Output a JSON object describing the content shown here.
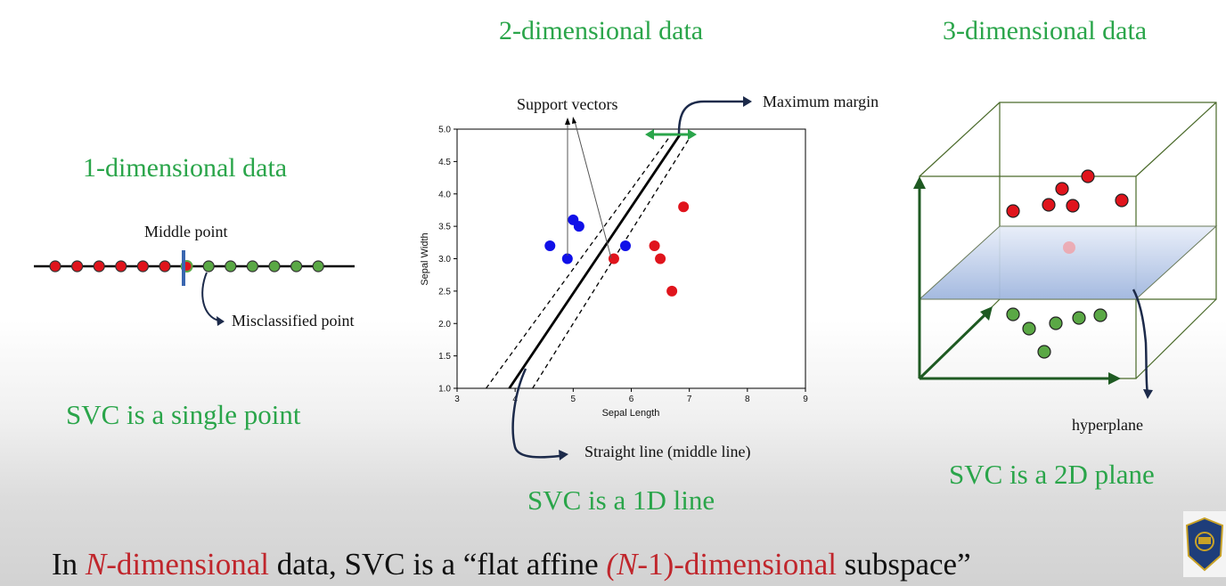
{
  "titles": {
    "one": "1-dimensional data",
    "two": "2-dimensional data",
    "three": "3-dimensional data"
  },
  "svc": {
    "one": "SVC is a single point",
    "two": "SVC is a 1D line",
    "three": "SVC is a 2D plane"
  },
  "labels": {
    "middle_point": "Middle point",
    "misclassified_point": "Misclassified point",
    "support_vectors": "Support vectors",
    "maximum_margin": "Maximum margin",
    "straight_line": "Straight line (middle line)",
    "hyperplane": "hyperplane"
  },
  "bottom": {
    "p1": "In ",
    "p2": "N",
    "p3": "-dimensional",
    "p4": " data, SVC is a “flat affine ",
    "p5": "(N",
    "p6": "-1)-dimensional",
    "p7": " subspace”"
  },
  "colors": {
    "title_green": "#2aa54a",
    "red_class": "#e0141c",
    "green_class": "#5aa845",
    "blue_class": "#1010e8",
    "arrow_navy": "#1c2a4a",
    "emphasis_red": "#c0262c"
  },
  "line_points": {
    "red": [
      1,
      2,
      3,
      4,
      5,
      6
    ],
    "green": [
      8,
      9,
      10,
      11,
      12,
      13
    ],
    "misclassified": 7,
    "boundary": 6.5
  },
  "chart_data": {
    "type": "scatter",
    "xlabel": "Sepal Length",
    "ylabel": "Sepal Width",
    "xlim": [
      3,
      9
    ],
    "ylim": [
      1.0,
      5.0
    ],
    "xticks": [
      "3",
      "4",
      "5",
      "6",
      "7",
      "8",
      "9"
    ],
    "yticks": [
      "1.0",
      "1.5",
      "2.0",
      "2.5",
      "3.0",
      "3.5",
      "4.0",
      "4.5",
      "5.0"
    ],
    "series": [
      {
        "color": "#1010e8",
        "x": [
          4.6,
          4.9,
          5.0,
          5.1,
          5.9
        ],
        "y": [
          3.2,
          3.0,
          3.6,
          3.5,
          3.2
        ]
      },
      {
        "color": "#e0141c",
        "x": [
          5.7,
          6.4,
          6.5,
          6.7,
          6.9
        ],
        "y": [
          3.0,
          3.2,
          3.0,
          2.5,
          3.8
        ]
      }
    ],
    "middle_line": {
      "x": [
        3.9,
        6.85
      ],
      "y": [
        1.0,
        4.93
      ]
    },
    "margin_lines": [
      {
        "x": [
          3.5,
          6.7
        ],
        "y": [
          1.0,
          4.93
        ]
      },
      {
        "x": [
          4.3,
          7.05
        ],
        "y": [
          1.0,
          4.93
        ]
      }
    ]
  }
}
